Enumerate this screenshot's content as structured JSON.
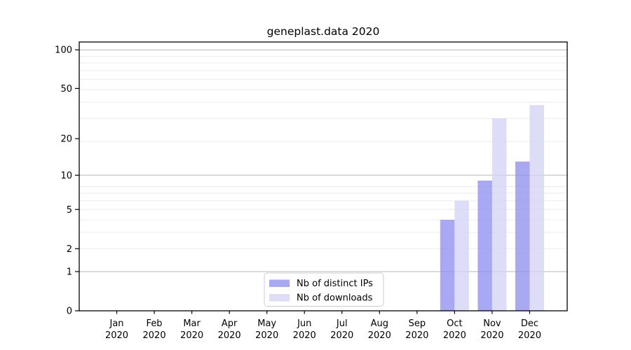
{
  "title": "geneplast.data 2020",
  "chart_data": {
    "type": "bar",
    "title": "geneplast.data 2020",
    "scale": "log10(1+v)",
    "grid": true,
    "legend_position": "bottom-center",
    "categories": [
      "Jan",
      "Feb",
      "Mar",
      "Apr",
      "May",
      "Jun",
      "Jul",
      "Aug",
      "Sep",
      "Oct",
      "Nov",
      "Dec"
    ],
    "x_tick_year": "2020",
    "y_ticks": [
      0,
      1,
      2,
      5,
      10,
      20,
      50,
      100
    ],
    "ylim": [
      0,
      115
    ],
    "series": [
      {
        "name": "Nb of distinct IPs",
        "color": "#8f8ff0",
        "values": [
          0,
          0,
          0,
          0,
          0,
          0,
          0,
          0,
          0,
          4,
          9,
          13
        ]
      },
      {
        "name": "Nb of downloads",
        "color": "#d3d3f6",
        "values": [
          0,
          0,
          0,
          0,
          0,
          0,
          0,
          0,
          0,
          6,
          29,
          37
        ]
      }
    ],
    "colors": {
      "bar_distinct_ips": "#a7a7f3",
      "bar_downloads": "#ddddf8",
      "grid_major": "#b8b8b8",
      "grid_minor": "#ebebeb",
      "axis": "#000000",
      "legend_border": "#cccccc",
      "background": "#ffffff"
    }
  }
}
